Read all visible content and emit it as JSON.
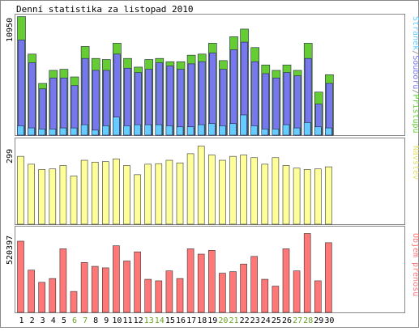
{
  "title": "Denní statistika za listopad 2010",
  "days": [
    "1",
    "2",
    "3",
    "4",
    "5",
    "6",
    "7",
    "8",
    "9",
    "10",
    "11",
    "12",
    "13",
    "14",
    "15",
    "16",
    "17",
    "18",
    "19",
    "20",
    "21",
    "22",
    "23",
    "24",
    "25",
    "26",
    "27",
    "28",
    "29",
    "30"
  ],
  "weekend_days": [
    6,
    7,
    13,
    14,
    20,
    21,
    27,
    28
  ],
  "colors": {
    "border": "#888888",
    "text": "#000000",
    "weekend_label": "#6aa121",
    "hits": "#66cc33",
    "files": "#7777ee",
    "pages": "#66ccff",
    "visits": "#ffff99",
    "kbytes": "#ff7777"
  },
  "chart_data": [
    {
      "type": "bar",
      "panel": "hits-files-pages",
      "ylabel": "10950",
      "ylim": [
        0,
        10950
      ],
      "legend": {
        "position": "right",
        "parts": [
          {
            "text": "Stránek",
            "color": "#66ccff"
          },
          {
            "text": "/",
            "color": "#888888"
          },
          {
            "text": "Souborů",
            "color": "#7777ee"
          },
          {
            "text": "/",
            "color": "#888888"
          },
          {
            "text": "Přístupů",
            "color": "#66cc33"
          }
        ]
      },
      "series": [
        {
          "name": "Přístupů",
          "values": [
            10950,
            7500,
            4800,
            6000,
            6100,
            5400,
            8200,
            7100,
            7000,
            8500,
            7100,
            6300,
            7000,
            7100,
            6800,
            6800,
            7400,
            7500,
            8500,
            6900,
            9100,
            9800,
            8100,
            6500,
            6000,
            6500,
            6000,
            8500,
            4000,
            5600
          ]
        },
        {
          "name": "Souborů",
          "values": [
            8800,
            6700,
            4300,
            5300,
            5300,
            4600,
            7100,
            6000,
            6000,
            7500,
            6200,
            5800,
            6100,
            6700,
            6400,
            6100,
            6600,
            6800,
            7600,
            6100,
            7900,
            8600,
            6800,
            5700,
            5300,
            5800,
            5500,
            7100,
            2900,
            4800
          ]
        },
        {
          "name": "Stránek",
          "values": [
            900,
            700,
            600,
            600,
            700,
            700,
            1000,
            500,
            900,
            1700,
            900,
            1000,
            1000,
            1000,
            900,
            800,
            800,
            1000,
            1100,
            900,
            1100,
            1900,
            900,
            600,
            600,
            1000,
            700,
            1200,
            800,
            700
          ]
        }
      ]
    },
    {
      "type": "bar",
      "panel": "visits",
      "ylabel": "299",
      "ylim": [
        0,
        299
      ],
      "legend": {
        "position": "right",
        "parts": [
          {
            "text": "Návštěv",
            "color": "#e0e070"
          }
        ]
      },
      "series": [
        {
          "name": "Návštěv",
          "values": [
            260,
            230,
            210,
            212,
            225,
            185,
            245,
            238,
            240,
            250,
            225,
            190,
            230,
            232,
            245,
            235,
            270,
            299,
            265,
            245,
            260,
            265,
            255,
            230,
            255,
            225,
            215,
            210,
            212,
            220
          ]
        }
      ]
    },
    {
      "type": "bar",
      "panel": "kbytes",
      "ylabel": "520397",
      "ylim": [
        0,
        520397
      ],
      "legend": {
        "position": "right",
        "parts": [
          {
            "text": "Objem přenosu",
            "color": "#ff7777"
          }
        ]
      },
      "series": [
        {
          "name": "Objem přenosu",
          "values": [
            470000,
            280000,
            200000,
            225000,
            420000,
            140000,
            330000,
            305000,
            295000,
            440000,
            340000,
            400000,
            220000,
            210000,
            275000,
            225000,
            420000,
            385000,
            410000,
            260000,
            270000,
            320000,
            370000,
            220000,
            175000,
            420000,
            275000,
            520397,
            210000,
            460000
          ]
        }
      ]
    }
  ]
}
